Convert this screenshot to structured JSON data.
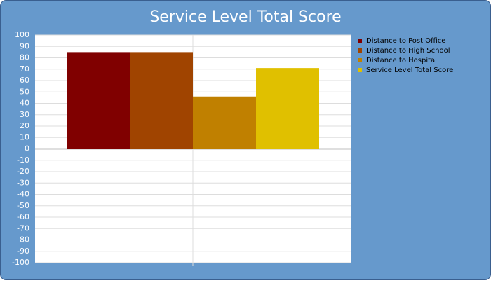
{
  "chart_data": {
    "type": "bar",
    "title": "Service Level Total Score",
    "categories": [
      null
    ],
    "series": [
      {
        "name": "Distance to Post Office",
        "color": "#800000",
        "values": [
          85
        ]
      },
      {
        "name": "Distance to High School",
        "color": "#a04400",
        "values": [
          85
        ]
      },
      {
        "name": "Distance to Hospital",
        "color": "#c08000",
        "values": [
          46
        ]
      },
      {
        "name": "Service Level Total Score",
        "color": "#e0c000",
        "values": [
          71
        ]
      }
    ],
    "ylim": [
      -100,
      100
    ],
    "yticks": [
      -100,
      -90,
      -80,
      -70,
      -60,
      -50,
      -40,
      -30,
      -20,
      -10,
      0,
      10,
      20,
      30,
      40,
      50,
      60,
      70,
      80,
      90,
      100
    ],
    "grid": true,
    "legend": "right"
  }
}
